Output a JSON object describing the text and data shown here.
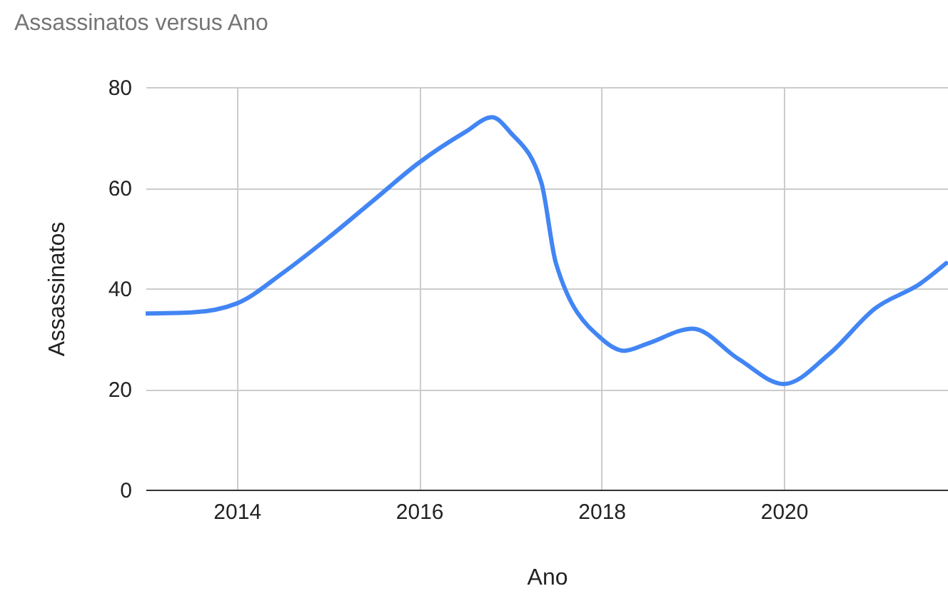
{
  "chart_data": {
    "type": "line",
    "title": "Assassinatos versus Ano",
    "xlabel": "Ano",
    "ylabel": "Assassinatos",
    "x": [
      2013,
      2013.5,
      2014,
      2014.5,
      2015,
      2015.5,
      2016,
      2016.5,
      2016.8,
      2017,
      2017.34,
      2017.5,
      2018,
      2018.25,
      2018.5,
      2019,
      2019.5,
      2020,
      2020.5,
      2021,
      2021.5,
      2021.78
    ],
    "series": [
      {
        "color": "#4285f4",
        "values": [
          35,
          35.2,
          37,
          43,
          50,
          57.5,
          65,
          71,
          74,
          71,
          61,
          45,
          30,
          27.6,
          29,
          32,
          26,
          21,
          27,
          36,
          41,
          45
        ]
      }
    ],
    "xlim": [
      2013,
      2021.8
    ],
    "xticks": [
      2014,
      2016,
      2018,
      2020
    ],
    "ylim": [
      0,
      80
    ],
    "yticks": [
      0,
      20,
      40,
      60,
      80
    ],
    "grid": true
  }
}
